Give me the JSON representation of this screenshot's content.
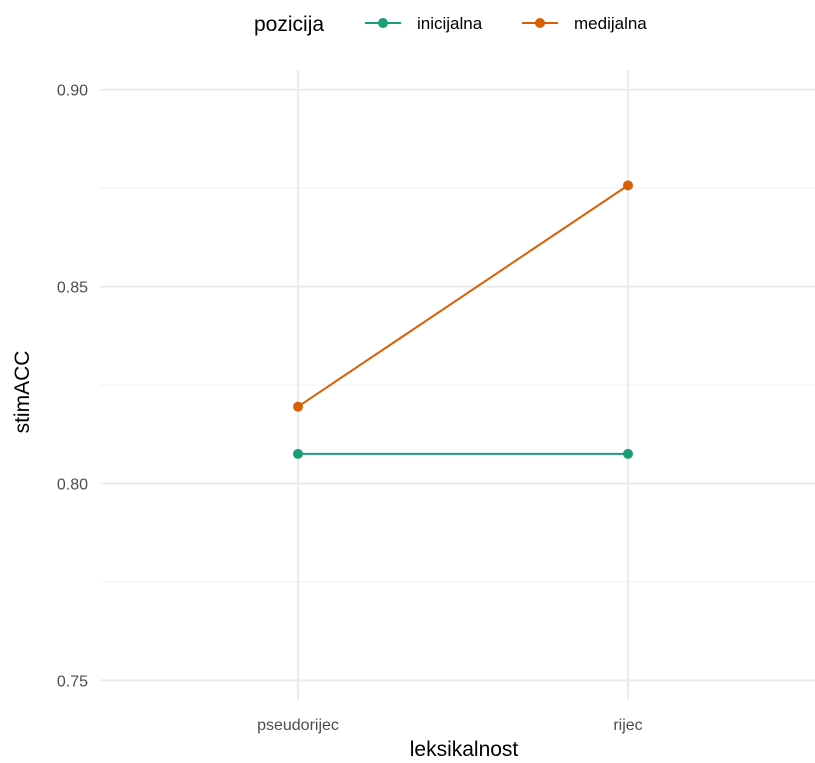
{
  "chart_data": {
    "type": "line",
    "xlabel": "leksikalnost",
    "ylabel": "stimACC",
    "categories": [
      "pseudorijec",
      "rijec"
    ],
    "ylim": [
      0.745,
      0.905
    ],
    "yticks": [
      "0.75",
      "0.80",
      "0.85",
      "0.90"
    ],
    "ytick_values": [
      0.75,
      0.8,
      0.85,
      0.9
    ],
    "grid": true,
    "legend": {
      "title": "pozicija",
      "position": "top"
    },
    "series": [
      {
        "name": "inicijalna",
        "color": "#1b9e77",
        "values": [
          0.8075,
          0.8075
        ]
      },
      {
        "name": "medijalna",
        "color": "#d95f02",
        "values": [
          0.8195,
          0.8757
        ]
      }
    ]
  }
}
